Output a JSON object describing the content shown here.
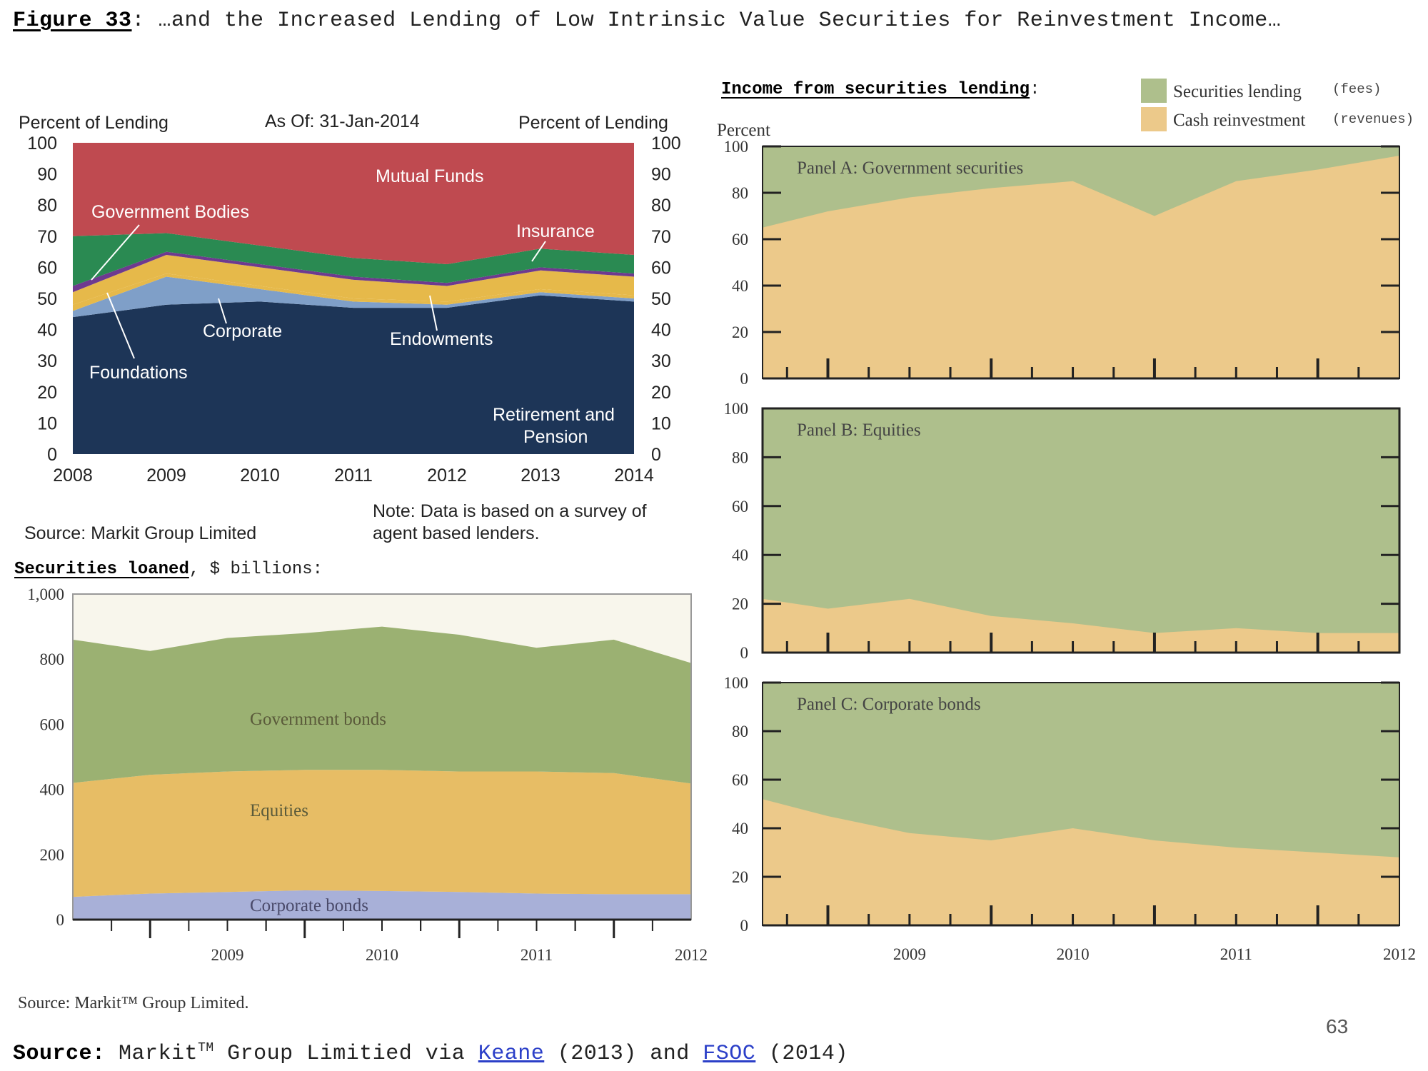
{
  "header": {
    "figure_label": "Figure 33",
    "title": ": …and the Increased Lending of Low Intrinsic Value Securities for Reinvestment Income…"
  },
  "footer": {
    "source_label": "Source:",
    "source_pre": " Markit",
    "source_tm": "TM",
    "source_mid": " Group Limitied via ",
    "link1": "Keane",
    "year1": " (2013) and ",
    "link2": "FSOC",
    "year2": " (2014)",
    "page_number": "63"
  },
  "colors": {
    "mutual_funds": "#bf4a50",
    "insurance": "#2a8a52",
    "government_bodies": "#6e3a8f",
    "foundations": "#e6b94a",
    "corporate": "#7f9fc8",
    "endowments": "#e6b94a",
    "retirement": "#1d3557",
    "gov_bonds": "#9bb172",
    "equities": "#e7bd65",
    "corp_bonds": "#a8b0d8",
    "fees": "#aebf8c",
    "revenues": "#ecc98a"
  },
  "chart_data": [
    {
      "id": "lending_by_lender",
      "type": "area",
      "title": "As Of: 31-Jan-2014",
      "ylabel_left": "Percent of Lending",
      "ylabel_right": "Percent of Lending",
      "ylim": [
        0,
        100
      ],
      "yticks": [
        "0",
        "10",
        "20",
        "30",
        "40",
        "50",
        "60",
        "70",
        "80",
        "90",
        "100"
      ],
      "x": [
        "2008",
        "2009",
        "2010",
        "2011",
        "2012",
        "2013",
        "2014"
      ],
      "series": [
        {
          "name": "Retirement and Pension",
          "values": [
            44,
            48,
            49,
            47,
            47,
            51,
            49
          ]
        },
        {
          "name": "Corporate",
          "values": [
            2,
            9,
            4,
            2,
            1,
            1,
            1
          ]
        },
        {
          "name": "Foundations",
          "values": [
            2,
            1,
            1,
            1,
            1,
            1,
            1
          ]
        },
        {
          "name": "Endowments",
          "values": [
            4,
            6,
            6,
            6,
            5,
            6,
            6
          ]
        },
        {
          "name": "Government Bodies",
          "values": [
            2,
            1,
            1,
            1,
            1,
            1,
            1
          ]
        },
        {
          "name": "Insurance",
          "values": [
            16,
            6,
            6,
            6,
            6,
            6,
            6
          ]
        },
        {
          "name": "Mutual Funds",
          "values": [
            30,
            29,
            33,
            37,
            39,
            34,
            36
          ]
        }
      ],
      "labels": {
        "mutual_funds": "Mutual Funds",
        "government_bodies": "Government Bodies",
        "insurance": "Insurance",
        "corporate": "Corporate",
        "endowments": "Endowments",
        "foundations": "Foundations",
        "retirement_l1": "Retirement and",
        "retirement_l2": "Pension"
      },
      "source": "Source: Markit Group Limited",
      "note_l1": "Note: Data is based on a survey of",
      "note_l2": "agent based lenders."
    },
    {
      "id": "securities_loaned",
      "type": "area",
      "title": "Securities loaned",
      "title_suffix": ", $ billions:",
      "ylim": [
        0,
        1000
      ],
      "yticks": [
        "0",
        "200",
        "400",
        "600",
        "800",
        "1,000"
      ],
      "x": [
        "2008.5",
        "2009",
        "2009.5",
        "2010",
        "2010.5",
        "2011",
        "2011.5",
        "2012",
        "2012.5"
      ],
      "xticks": [
        "2009",
        "2010",
        "2011",
        "2012"
      ],
      "series": [
        {
          "name": "Corporate bonds",
          "values": [
            70,
            80,
            85,
            90,
            88,
            85,
            80,
            78,
            78
          ]
        },
        {
          "name": "Equities",
          "values": [
            350,
            365,
            370,
            370,
            372,
            370,
            375,
            372,
            340
          ]
        },
        {
          "name": "Government bonds",
          "values": [
            440,
            380,
            410,
            420,
            440,
            420,
            380,
            410,
            370
          ]
        }
      ],
      "source": "Source: Markit™ Group Limited."
    },
    {
      "id": "income_lending",
      "type": "area",
      "title": "Income from securities lending",
      "title_suffix": ":",
      "ylabel": "Percent",
      "ylim": [
        0,
        100
      ],
      "yticks": [
        "0",
        "20",
        "40",
        "60",
        "80",
        "100"
      ],
      "xticks": [
        "2009",
        "2010",
        "2011",
        "2012"
      ],
      "legend": [
        {
          "name": "Securities lending",
          "note": "(fees)"
        },
        {
          "name": "Cash reinvestment",
          "note": "(revenues)"
        }
      ],
      "panels": [
        {
          "name": "Panel A: Government securities",
          "x": [
            "2008.6",
            "2009",
            "2009.5",
            "2010",
            "2010.5",
            "2011",
            "2011.5",
            "2012",
            "2012.5"
          ],
          "cash_reinvestment": [
            65,
            72,
            78,
            82,
            85,
            70,
            85,
            90,
            96
          ]
        },
        {
          "name": "Panel B: Equities",
          "x": [
            "2008.6",
            "2009",
            "2009.5",
            "2010",
            "2010.5",
            "2011",
            "2011.5",
            "2012",
            "2012.5"
          ],
          "cash_reinvestment": [
            22,
            18,
            22,
            15,
            12,
            8,
            10,
            8,
            8
          ]
        },
        {
          "name": "Panel C: Corporate bonds",
          "x": [
            "2008.6",
            "2009",
            "2009.5",
            "2010",
            "2010.5",
            "2011",
            "2011.5",
            "2012",
            "2012.5"
          ],
          "cash_reinvestment": [
            52,
            45,
            38,
            35,
            40,
            35,
            32,
            30,
            28
          ]
        }
      ]
    }
  ]
}
